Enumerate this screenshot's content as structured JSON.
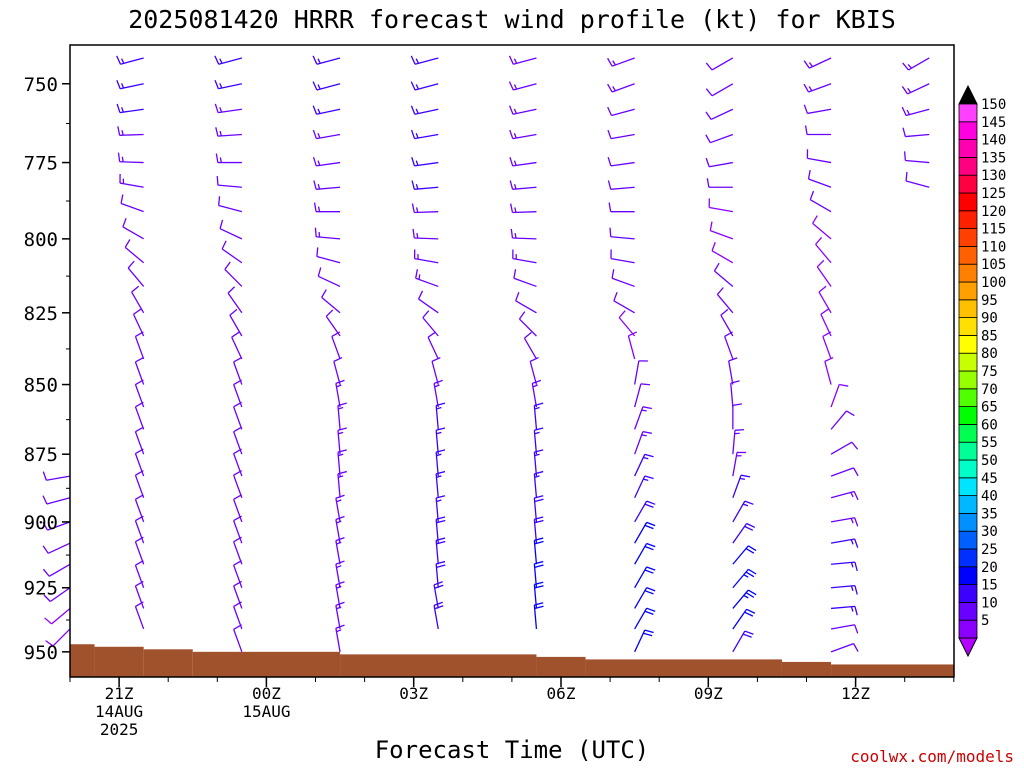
{
  "chart_data": {
    "type": "wind-barb-time-height",
    "title": "2025081420 HRRR forecast wind profile (kt) for KBIS",
    "xlabel": "Forecast Time (UTC)",
    "ylabel": "",
    "credit": "coolwx.com/models",
    "y_axis": {
      "units": "mb",
      "scale": "log-pressure",
      "range": [
        960,
        738
      ],
      "ticks": [
        750,
        775,
        800,
        825,
        850,
        875,
        900,
        925,
        950
      ]
    },
    "x_axis": {
      "units": "hours from 20Z 14AUG2025",
      "range": [
        0,
        18
      ],
      "ticks": [
        {
          "hour": 1,
          "lines": [
            "21Z",
            "14AUG",
            "2025"
          ]
        },
        {
          "hour": 4,
          "lines": [
            "00Z",
            "15AUG"
          ]
        },
        {
          "hour": 7,
          "lines": [
            "03Z"
          ]
        },
        {
          "hour": 10,
          "lines": [
            "06Z"
          ]
        },
        {
          "hour": 13,
          "lines": [
            "09Z"
          ]
        },
        {
          "hour": 16,
          "lines": [
            "12Z"
          ]
        }
      ]
    },
    "terrain": {
      "color": "#a0522d",
      "surface_pressure": [
        {
          "from": 0,
          "to": 0.5,
          "p": 947
        },
        {
          "from": 0.5,
          "to": 1.5,
          "p": 948
        },
        {
          "from": 1.5,
          "to": 2.5,
          "p": 949
        },
        {
          "from": 2.5,
          "to": 5.5,
          "p": 950
        },
        {
          "from": 5.5,
          "to": 9.5,
          "p": 951
        },
        {
          "from": 9.5,
          "to": 10.5,
          "p": 952
        },
        {
          "from": 10.5,
          "to": 14.5,
          "p": 953
        },
        {
          "from": 14.5,
          "to": 15.5,
          "p": 954
        },
        {
          "from": 15.5,
          "to": 18,
          "p": 955
        }
      ]
    },
    "colorbar": {
      "labels": [
        "5",
        "10",
        "15",
        "20",
        "25",
        "30",
        "35",
        "40",
        "45",
        "50",
        "55",
        "60",
        "65",
        "70",
        "75",
        "80",
        "85",
        "90",
        "95",
        "100",
        "105",
        "110",
        "115",
        "120",
        "125",
        "130",
        "135",
        "140",
        "145",
        "150"
      ],
      "colors": [
        "#8b00ff",
        "#6a00ff",
        "#3c00ff",
        "#0000ff",
        "#0030ff",
        "#0060ff",
        "#0090ff",
        "#00b8ff",
        "#00e5ff",
        "#00ffc8",
        "#00ff96",
        "#00ff50",
        "#00ff00",
        "#50ff00",
        "#96ff00",
        "#c8ff00",
        "#ffff00",
        "#ffe000",
        "#ffc000",
        "#ffa000",
        "#ff8000",
        "#ff6000",
        "#ff4000",
        "#ff2000",
        "#ff0000",
        "#ff0040",
        "#ff0080",
        "#ff00b0",
        "#ff00e0",
        "#ff40ff"
      ],
      "over_color": "#000000",
      "under_color": "#b400ff"
    },
    "barb_levels": [
      742,
      750,
      758,
      766,
      775,
      783,
      791,
      800,
      808,
      816,
      825,
      833,
      841,
      850,
      858,
      866,
      875,
      883,
      891,
      900,
      908,
      916,
      925,
      933,
      941,
      950
    ],
    "profiles": [
      {
        "hour": 0,
        "speeds": [
          null,
          null,
          null,
          null,
          null,
          null,
          null,
          null,
          null,
          null,
          null,
          null,
          null,
          null,
          null,
          null,
          null,
          12,
          12,
          12,
          11,
          10,
          10,
          9,
          8,
          null
        ],
        "dirs": [
          null,
          null,
          null,
          null,
          null,
          null,
          null,
          null,
          null,
          null,
          null,
          null,
          null,
          null,
          null,
          null,
          null,
          260,
          255,
          250,
          245,
          240,
          235,
          230,
          225,
          null
        ]
      },
      {
        "hour": 1.5,
        "speeds": [
          16,
          15,
          15,
          14,
          14,
          13,
          12,
          11,
          10,
          10,
          10,
          10,
          11,
          11,
          12,
          12,
          12,
          12,
          12,
          12,
          12,
          12,
          12,
          12,
          12,
          null
        ],
        "dirs": [
          255,
          258,
          262,
          268,
          272,
          280,
          290,
          300,
          310,
          320,
          330,
          335,
          340,
          340,
          340,
          340,
          340,
          340,
          340,
          340,
          340,
          340,
          340,
          340,
          340,
          null
        ]
      },
      {
        "hour": 3.5,
        "speeds": [
          15,
          15,
          14,
          14,
          13,
          12,
          12,
          11,
          11,
          10,
          10,
          10,
          11,
          11,
          11,
          11,
          12,
          12,
          12,
          12,
          12,
          12,
          12,
          12,
          12,
          12
        ],
        "dirs": [
          255,
          258,
          262,
          266,
          270,
          275,
          285,
          295,
          305,
          315,
          325,
          330,
          335,
          340,
          340,
          340,
          340,
          340,
          340,
          340,
          340,
          340,
          340,
          340,
          340,
          340
        ]
      },
      {
        "hour": 5.5,
        "speeds": [
          15,
          15,
          15,
          14,
          14,
          14,
          13,
          13,
          12,
          12,
          11,
          10,
          10,
          12,
          13,
          13,
          14,
          14,
          14,
          14,
          14,
          14,
          14,
          14,
          14,
          14
        ],
        "dirs": [
          255,
          255,
          258,
          260,
          262,
          265,
          270,
          275,
          285,
          295,
          310,
          325,
          340,
          345,
          350,
          355,
          355,
          355,
          355,
          350,
          350,
          350,
          350,
          350,
          350,
          350
        ]
      },
      {
        "hour": 7.5,
        "speeds": [
          15,
          15,
          15,
          15,
          15,
          15,
          14,
          14,
          14,
          13,
          12,
          11,
          11,
          12,
          14,
          15,
          16,
          16,
          17,
          17,
          18,
          18,
          18,
          18,
          19,
          null
        ],
        "dirs": [
          255,
          255,
          258,
          260,
          262,
          265,
          268,
          272,
          280,
          290,
          305,
          320,
          335,
          345,
          350,
          355,
          355,
          355,
          355,
          355,
          355,
          355,
          355,
          350,
          350,
          null
        ]
      },
      {
        "hour": 9.5,
        "speeds": [
          14,
          14,
          14,
          14,
          14,
          14,
          14,
          13,
          13,
          12,
          12,
          12,
          11,
          12,
          14,
          15,
          16,
          17,
          17,
          18,
          19,
          20,
          20,
          20,
          20,
          null
        ],
        "dirs": [
          255,
          255,
          258,
          260,
          262,
          265,
          268,
          272,
          280,
          290,
          300,
          315,
          330,
          345,
          350,
          355,
          355,
          355,
          355,
          355,
          355,
          355,
          355,
          355,
          355,
          null
        ]
      },
      {
        "hour": 11.5,
        "speeds": [
          13,
          13,
          12,
          12,
          12,
          12,
          11,
          11,
          11,
          11,
          10,
          9,
          8,
          10,
          12,
          13,
          14,
          15,
          16,
          18,
          20,
          21,
          22,
          22,
          22,
          20
        ],
        "dirs": [
          250,
          250,
          255,
          260,
          262,
          265,
          270,
          275,
          280,
          290,
          300,
          320,
          345,
          10,
          15,
          20,
          20,
          25,
          25,
          30,
          30,
          30,
          30,
          30,
          30,
          25
        ]
      },
      {
        "hour": 13.5,
        "speeds": [
          11,
          11,
          11,
          11,
          10,
          10,
          9,
          9,
          9,
          10,
          10,
          10,
          11,
          12,
          12,
          12,
          13,
          14,
          15,
          17,
          19,
          21,
          23,
          23,
          20,
          18
        ],
        "dirs": [
          240,
          240,
          245,
          250,
          260,
          270,
          280,
          290,
          300,
          310,
          320,
          330,
          340,
          350,
          355,
          0,
          5,
          10,
          20,
          30,
          35,
          40,
          40,
          40,
          35,
          30
        ]
      },
      {
        "hour": 15.5,
        "speeds": [
          13,
          13,
          12,
          12,
          11,
          10,
          10,
          9,
          9,
          9,
          9,
          9,
          8,
          8,
          9,
          10,
          11,
          12,
          13,
          14,
          16,
          17,
          17,
          16,
          12,
          10
        ],
        "dirs": [
          245,
          250,
          260,
          270,
          280,
          290,
          300,
          310,
          320,
          325,
          330,
          335,
          340,
          345,
          20,
          40,
          60,
          70,
          75,
          80,
          80,
          85,
          85,
          85,
          80,
          70
        ]
      },
      {
        "hour": 17.5,
        "speeds": [
          14,
          14,
          13,
          12,
          11,
          10,
          null,
          null,
          null,
          null,
          null,
          null,
          null,
          null,
          null,
          null,
          null,
          null,
          null,
          null,
          null,
          null,
          null,
          null,
          null,
          null
        ],
        "dirs": [
          240,
          245,
          255,
          265,
          275,
          285,
          null,
          null,
          null,
          null,
          null,
          null,
          null,
          null,
          null,
          null,
          null,
          null,
          null,
          null,
          null,
          null,
          null,
          null,
          null,
          null
        ]
      }
    ]
  }
}
